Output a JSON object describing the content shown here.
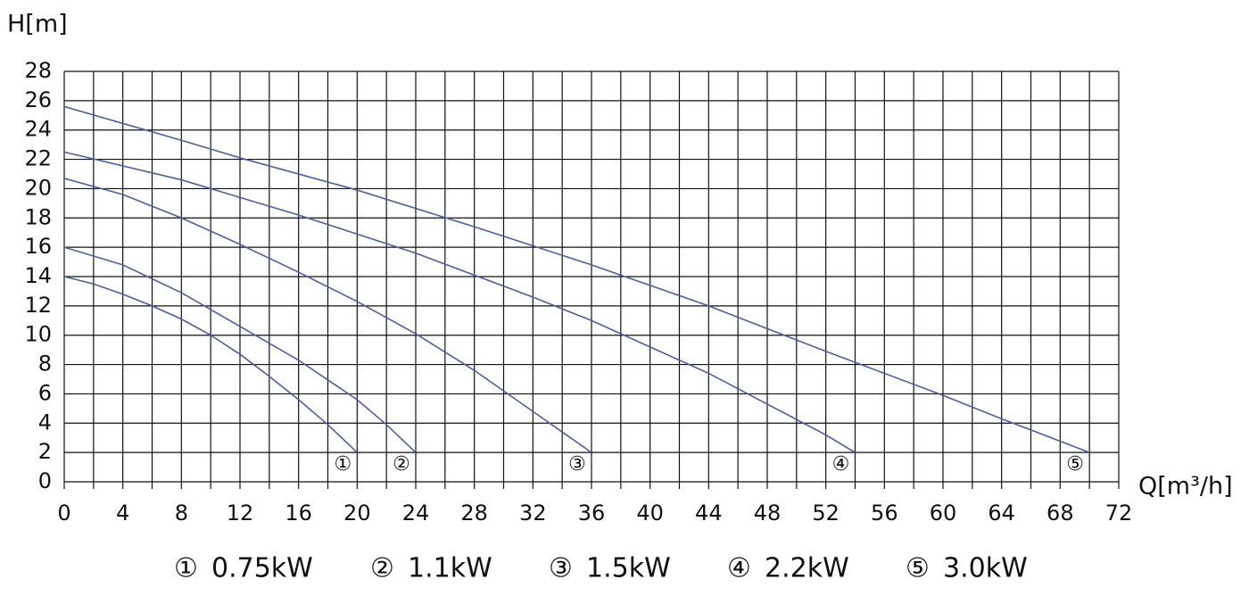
{
  "chart_data": {
    "type": "line",
    "y_label": "H[m]",
    "x_label": "Q[m³/h]",
    "xlim": [
      0,
      72
    ],
    "ylim": [
      0,
      28
    ],
    "xticks": [
      0,
      4,
      8,
      12,
      16,
      20,
      24,
      28,
      32,
      36,
      40,
      44,
      48,
      52,
      56,
      60,
      64,
      68,
      72
    ],
    "yticks": [
      0,
      2,
      4,
      6,
      8,
      10,
      12,
      14,
      16,
      18,
      20,
      22,
      24,
      26,
      28
    ],
    "grid": true,
    "series": [
      {
        "name": "0.75kW",
        "marker": "①",
        "color": "#4a5ea8",
        "x": [
          0,
          2,
          4,
          6,
          8,
          10,
          12,
          14,
          16,
          18,
          20
        ],
        "values": [
          14,
          13.5,
          12.8,
          12.0,
          11.1,
          10,
          8.7,
          7.2,
          5.6,
          3.9,
          2.0
        ]
      },
      {
        "name": "1.1kW",
        "marker": "②",
        "color": "#4a5ea8",
        "x": [
          0,
          4,
          8,
          12,
          16,
          20,
          22,
          24
        ],
        "values": [
          16,
          14.8,
          12.9,
          10.6,
          8.3,
          5.6,
          3.9,
          2.0
        ]
      },
      {
        "name": "1.5kW",
        "marker": "③",
        "color": "#4a5ea8",
        "x": [
          0,
          4,
          8,
          12,
          16,
          20,
          24,
          28,
          32,
          36
        ],
        "values": [
          20.7,
          19.6,
          18.0,
          16.2,
          14.3,
          12.3,
          10.1,
          7.6,
          4.8,
          2.0
        ]
      },
      {
        "name": "2.2kW",
        "marker": "④",
        "color": "#4a5ea8",
        "x": [
          0,
          8,
          16,
          24,
          32,
          36,
          40,
          44,
          48,
          52,
          54
        ],
        "values": [
          22.5,
          20.6,
          18.2,
          15.6,
          12.6,
          11.0,
          9.2,
          7.4,
          5.3,
          3.2,
          2.0
        ]
      },
      {
        "name": "3.0kW",
        "marker": "⑤",
        "color": "#4a5ea8",
        "x": [
          0,
          8,
          12,
          20,
          28,
          36,
          44,
          52,
          60,
          64,
          70
        ],
        "values": [
          25.6,
          23.3,
          22.1,
          19.9,
          17.4,
          14.8,
          12.0,
          8.9,
          5.9,
          4.3,
          2.0
        ]
      }
    ]
  }
}
